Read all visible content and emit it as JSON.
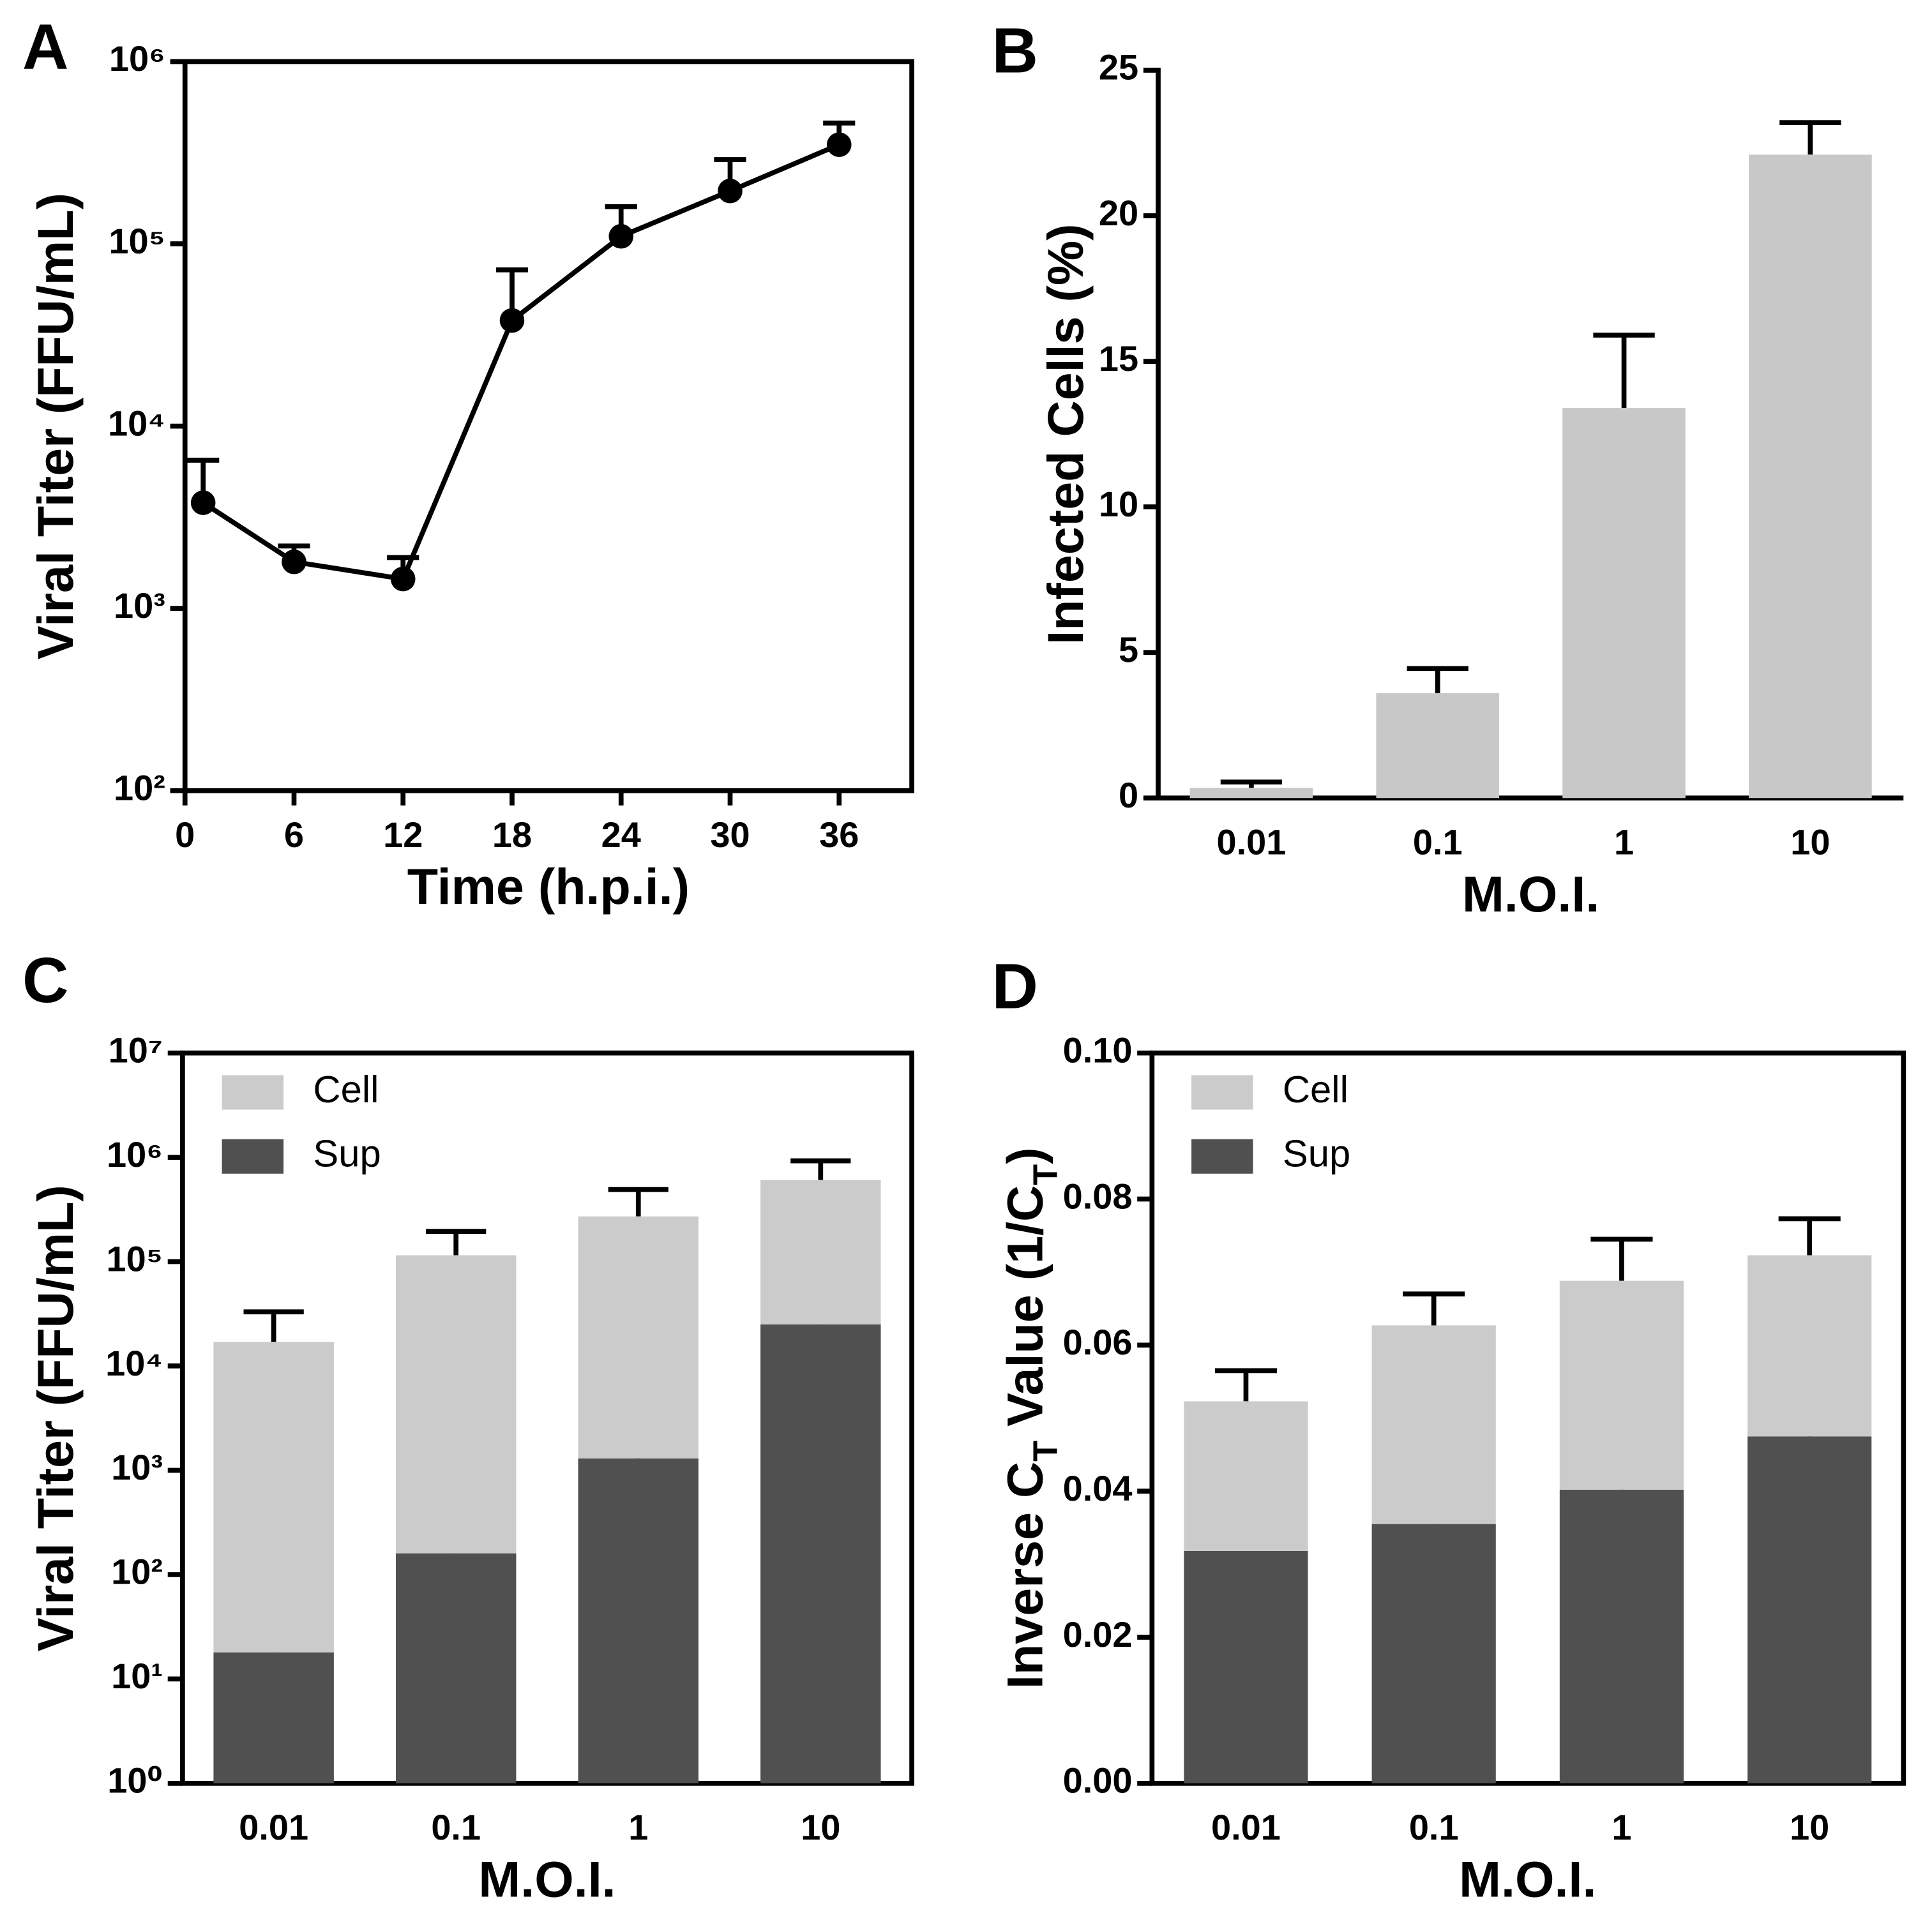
{
  "chart_data": [
    {
      "panel": "A",
      "type": "line",
      "ylog": true,
      "frame": true,
      "color": "#000000",
      "xlabel": "Time (h.p.i.)",
      "ylabel": "Viral Titer (FFU/mL)",
      "x": [
        1,
        6,
        12,
        18,
        24,
        30,
        36
      ],
      "values": [
        3800,
        1800,
        1450,
        38000,
        110000,
        195000,
        350000
      ],
      "errors": [
        2700,
        400,
        450,
        34000,
        50000,
        95000,
        110000
      ],
      "xlim": [
        0,
        40
      ],
      "xticks": [
        0,
        6,
        12,
        18,
        24,
        30,
        36
      ],
      "ylim": [
        100,
        1000000
      ],
      "yticks": [
        {
          "value": 100,
          "label": "10²"
        },
        {
          "value": 1000,
          "label": "10³"
        },
        {
          "value": 10000,
          "label": "10⁴"
        },
        {
          "value": 100000,
          "label": "10⁵"
        },
        {
          "value": 1000000,
          "label": "10⁶"
        }
      ]
    },
    {
      "panel": "B",
      "type": "bar",
      "ylog": false,
      "frame": false,
      "color": "#c8c8c8",
      "xlabel": "M.O.I.",
      "ylabel": "Infected Cells (%)",
      "categories": [
        "0.01",
        "0.1",
        "1",
        "10"
      ],
      "values": [
        0.35,
        3.6,
        13.4,
        22.1
      ],
      "errors": [
        0.2,
        0.85,
        2.5,
        1.1
      ],
      "ylim": [
        0,
        25
      ],
      "yticks": [
        0,
        5,
        10,
        15,
        20,
        25
      ]
    },
    {
      "panel": "C",
      "type": "stacked_bar",
      "ylog": true,
      "frame": true,
      "legend": "upper left",
      "xlabel": "M.O.I.",
      "ylabel": "Viral Titer (FFU/mL)",
      "categories": [
        "0.01",
        "0.1",
        "1",
        "10"
      ],
      "series": [
        {
          "name": "Sup",
          "color": "#505050",
          "values": [
            18,
            160,
            1300,
            25000
          ],
          "errors": [
            20,
            60,
            700,
            15000
          ]
        },
        {
          "name": "Cell",
          "color": "#cbcbcb",
          "values": [
            17000,
            115000,
            270000,
            580000
          ],
          "errors": [
            16000,
            80000,
            220000,
            320000
          ]
        }
      ],
      "ylim": [
        1,
        10000000
      ],
      "yticks": [
        {
          "value": 1,
          "label": "10⁰"
        },
        {
          "value": 10,
          "label": "10¹"
        },
        {
          "value": 100,
          "label": "10²"
        },
        {
          "value": 1000,
          "label": "10³"
        },
        {
          "value": 10000,
          "label": "10⁴"
        },
        {
          "value": 100000,
          "label": "10⁵"
        },
        {
          "value": 1000000,
          "label": "10⁶"
        },
        {
          "value": 10000000,
          "label": "10⁷"
        }
      ]
    },
    {
      "panel": "D",
      "type": "stacked_bar",
      "ylog": false,
      "frame": true,
      "legend": "upper left",
      "xlabel": "M.O.I.",
      "ylabel": [
        {
          "text": "Inverse C"
        },
        {
          "text": "T",
          "sub": true
        },
        {
          "text": " Value (1/C"
        },
        {
          "text": "T",
          "sub": true
        },
        {
          "text": ")"
        }
      ],
      "categories": [
        "0.01",
        "0.1",
        "1",
        "10"
      ],
      "series": [
        {
          "name": "Sup",
          "color": "#505050",
          "values": [
            0.0318,
            0.0355,
            0.0402,
            0.0475
          ],
          "errors": [
            0.0012,
            0.0015,
            0.002,
            0.0015
          ]
        },
        {
          "name": "Cell",
          "color": "#cbcbcb",
          "values": [
            0.0205,
            0.0272,
            0.0286,
            0.0248
          ],
          "errors": [
            0.0042,
            0.0043,
            0.0057,
            0.005
          ]
        }
      ],
      "ylim": [
        0,
        0.1
      ],
      "yticks": [
        {
          "value": 0,
          "label": "0.00"
        },
        {
          "value": 0.02,
          "label": "0.02"
        },
        {
          "value": 0.04,
          "label": "0.04"
        },
        {
          "value": 0.06,
          "label": "0.06"
        },
        {
          "value": 0.08,
          "label": "0.08"
        },
        {
          "value": 0.1,
          "label": "0.10"
        }
      ]
    }
  ]
}
